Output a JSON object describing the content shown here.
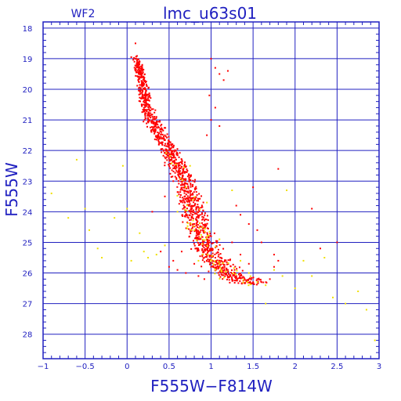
{
  "chart_data": {
    "type": "scatter",
    "title": "lmc_u63s01",
    "panel_label": "WF2",
    "xlabel": "F555W−F814W",
    "ylabel": "F555W",
    "xlim": [
      -1,
      3
    ],
    "ylim": [
      28.8,
      17.8
    ],
    "y_inverted": true,
    "grid": true,
    "x_ticks": [
      -1,
      -0.5,
      0,
      0.5,
      1,
      1.5,
      2,
      2.5,
      3
    ],
    "x_tick_labels": [
      "−1",
      "−0.5",
      "0",
      "0.5",
      "1",
      "1.5",
      "2",
      "2.5",
      "3"
    ],
    "y_ticks": [
      18,
      19,
      20,
      21,
      22,
      23,
      24,
      25,
      26,
      27,
      28
    ],
    "y_tick_labels": [
      "18",
      "19",
      "20",
      "21",
      "22",
      "23",
      "24",
      "25",
      "26",
      "27",
      "28"
    ],
    "series": [
      {
        "color": "#ff0000",
        "ridge": [
          [
            0.12,
            19.0
          ],
          [
            0.25,
            20.8
          ],
          [
            0.5,
            22.0
          ],
          [
            0.65,
            22.8
          ],
          [
            0.75,
            23.7
          ],
          [
            0.85,
            24.5
          ],
          [
            0.95,
            25.2
          ],
          [
            1.1,
            25.8
          ],
          [
            1.3,
            26.2
          ],
          [
            1.55,
            26.3
          ]
        ],
        "points": [
          [
            0.05,
            18.95
          ],
          [
            0.1,
            18.5
          ],
          [
            0.12,
            19.2
          ],
          [
            0.15,
            19.1
          ],
          [
            0.18,
            19.4
          ],
          [
            0.2,
            19.7
          ],
          [
            0.22,
            20.0
          ],
          [
            0.25,
            20.3
          ],
          [
            0.2,
            20.5
          ],
          [
            0.28,
            20.6
          ],
          [
            0.3,
            20.9
          ],
          [
            0.26,
            21.0
          ],
          [
            0.35,
            21.1
          ],
          [
            0.4,
            21.3
          ],
          [
            0.45,
            21.5
          ],
          [
            0.5,
            21.7
          ],
          [
            0.42,
            21.8
          ],
          [
            0.55,
            21.9
          ],
          [
            0.6,
            22.1
          ],
          [
            0.52,
            22.2
          ],
          [
            0.65,
            22.4
          ],
          [
            0.58,
            22.6
          ],
          [
            0.7,
            22.7
          ],
          [
            0.63,
            22.9
          ],
          [
            0.72,
            23.1
          ],
          [
            0.68,
            23.3
          ],
          [
            0.78,
            23.4
          ],
          [
            0.7,
            23.6
          ],
          [
            0.8,
            23.8
          ],
          [
            0.75,
            24.0
          ],
          [
            0.85,
            24.2
          ],
          [
            0.8,
            24.4
          ],
          [
            0.9,
            24.5
          ],
          [
            0.86,
            24.7
          ],
          [
            0.95,
            24.9
          ],
          [
            0.9,
            25.1
          ],
          [
            1.0,
            25.2
          ],
          [
            0.95,
            25.4
          ],
          [
            1.05,
            25.5
          ],
          [
            1.1,
            25.7
          ],
          [
            1.0,
            25.8
          ],
          [
            1.2,
            25.9
          ],
          [
            1.15,
            26.0
          ],
          [
            1.3,
            26.1
          ],
          [
            1.25,
            26.2
          ],
          [
            1.4,
            26.2
          ],
          [
            1.5,
            26.3
          ],
          [
            1.55,
            26.2
          ],
          [
            1.6,
            26.3
          ],
          [
            1.7,
            26.2
          ],
          [
            1.75,
            25.8
          ],
          [
            1.8,
            25.6
          ],
          [
            1.0,
            19.0
          ],
          [
            1.05,
            19.3
          ],
          [
            1.1,
            19.5
          ],
          [
            1.15,
            19.7
          ],
          [
            1.2,
            19.4
          ],
          [
            0.98,
            20.2
          ],
          [
            1.05,
            20.6
          ],
          [
            1.0,
            21.0
          ],
          [
            0.95,
            21.5
          ],
          [
            1.1,
            21.2
          ],
          [
            0.3,
            24.0
          ],
          [
            0.4,
            25.3
          ],
          [
            0.5,
            25.8
          ],
          [
            0.55,
            25.6
          ],
          [
            0.6,
            25.9
          ],
          [
            0.65,
            25.3
          ],
          [
            1.45,
            24.4
          ],
          [
            1.55,
            24.6
          ],
          [
            1.6,
            25.0
          ],
          [
            1.75,
            25.4
          ],
          [
            1.8,
            22.6
          ],
          [
            2.2,
            23.9
          ],
          [
            2.3,
            25.2
          ],
          [
            2.5,
            25.0
          ],
          [
            0.7,
            26.0
          ],
          [
            0.8,
            25.7
          ],
          [
            1.3,
            23.8
          ],
          [
            1.35,
            24.1
          ],
          [
            1.5,
            23.2
          ],
          [
            0.45,
            23.5
          ],
          [
            0.55,
            23.0
          ],
          [
            1.25,
            25.0
          ],
          [
            1.35,
            25.4
          ],
          [
            1.45,
            25.7
          ],
          [
            0.85,
            26.1
          ],
          [
            0.92,
            26.2
          ]
        ]
      },
      {
        "color": "#f0e000",
        "points": [
          [
            -0.9,
            23.4
          ],
          [
            -0.7,
            24.2
          ],
          [
            -0.6,
            22.3
          ],
          [
            -0.5,
            23.9
          ],
          [
            -0.45,
            24.6
          ],
          [
            -0.35,
            25.2
          ],
          [
            -0.3,
            25.5
          ],
          [
            -0.15,
            24.2
          ],
          [
            -0.05,
            22.5
          ],
          [
            0.0,
            23.9
          ],
          [
            0.05,
            25.6
          ],
          [
            0.15,
            24.7
          ],
          [
            0.2,
            25.3
          ],
          [
            0.25,
            25.5
          ],
          [
            0.35,
            25.4
          ],
          [
            0.45,
            25.1
          ],
          [
            0.6,
            24.0
          ],
          [
            0.7,
            23.2
          ],
          [
            0.75,
            22.5
          ],
          [
            0.8,
            24.6
          ],
          [
            0.85,
            25.6
          ],
          [
            0.95,
            23.7
          ],
          [
            1.05,
            25.9
          ],
          [
            1.1,
            24.9
          ],
          [
            1.25,
            23.3
          ],
          [
            1.35,
            25.6
          ],
          [
            1.45,
            26.0
          ],
          [
            1.55,
            26.3
          ],
          [
            1.65,
            26.4
          ],
          [
            1.75,
            25.9
          ],
          [
            1.85,
            26.1
          ],
          [
            1.9,
            23.3
          ],
          [
            2.0,
            26.5
          ],
          [
            2.1,
            25.6
          ],
          [
            2.2,
            26.1
          ],
          [
            2.35,
            25.5
          ],
          [
            2.45,
            26.8
          ],
          [
            2.6,
            27.0
          ],
          [
            2.75,
            26.6
          ],
          [
            2.85,
            27.2
          ],
          [
            2.95,
            28.2
          ],
          [
            1.65,
            27.0
          ]
        ]
      }
    ]
  }
}
